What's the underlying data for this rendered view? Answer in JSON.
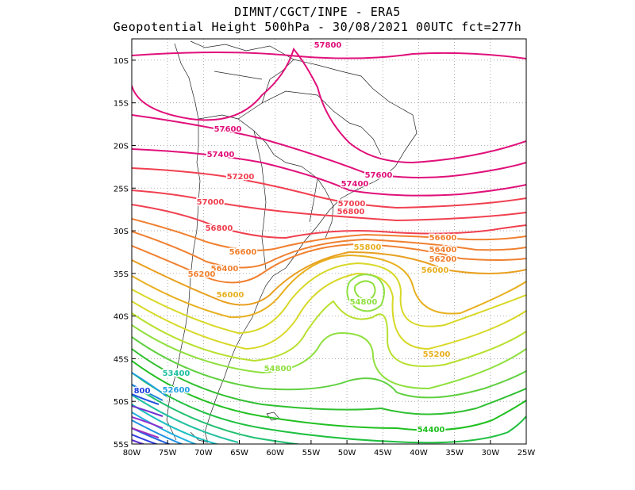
{
  "header": {
    "line1": "DIMNT/CGCT/INPE -  ERA5",
    "line2": "Geopotential Height 500hPa -  30/08/2021 00UTC fct=277h"
  },
  "map": {
    "x_ticks": [
      "80W",
      "75W",
      "70W",
      "65W",
      "60W",
      "55W",
      "50W",
      "45W",
      "40W",
      "35W",
      "30W",
      "25W"
    ],
    "y_ticks": [
      "10S",
      "15S",
      "20S",
      "25S",
      "30S",
      "35S",
      "40S",
      "45S",
      "50S",
      "55S"
    ],
    "lon_range": [
      -80,
      -25
    ],
    "lat_range": [
      -55,
      -7.5
    ],
    "grid": "dotted",
    "colors": {
      "magenta": "#e0107a",
      "red": "#f04050",
      "orange": "#f08030",
      "gold": "#e8b020",
      "yellow": "#d8d828",
      "lightgreen": "#90e040",
      "green": "#20c020",
      "teal": "#20c0a0",
      "cyan": "#20a0e0",
      "blue": "#2040e0",
      "violet": "#9030d0"
    },
    "labels": [
      {
        "text": "57800",
        "color": "magenta"
      },
      {
        "text": "57600",
        "color": "magenta"
      },
      {
        "text": "57400",
        "color": "magenta"
      },
      {
        "text": "57200",
        "color": "red"
      },
      {
        "text": "57600",
        "color": "magenta"
      },
      {
        "text": "57400",
        "color": "magenta"
      },
      {
        "text": "57000",
        "color": "red"
      },
      {
        "text": "57000",
        "color": "red"
      },
      {
        "text": "56800",
        "color": "red"
      },
      {
        "text": "56800",
        "color": "red"
      },
      {
        "text": "56600",
        "color": "orange"
      },
      {
        "text": "56400",
        "color": "orange"
      },
      {
        "text": "56200",
        "color": "orange"
      },
      {
        "text": "56600",
        "color": "orange"
      },
      {
        "text": "56400",
        "color": "orange"
      },
      {
        "text": "56200",
        "color": "orange"
      },
      {
        "text": "56000",
        "color": "gold"
      },
      {
        "text": "55800",
        "color": "gold"
      },
      {
        "text": "56000",
        "color": "gold"
      },
      {
        "text": "54800",
        "color": "lightgreen"
      },
      {
        "text": "55200",
        "color": "gold"
      },
      {
        "text": "54800",
        "color": "lightgreen"
      },
      {
        "text": "53400",
        "color": "teal"
      },
      {
        "text": "52600",
        "color": "cyan"
      },
      {
        "text": "800",
        "color": "blue"
      },
      {
        "text": "54400",
        "color": "green"
      }
    ]
  }
}
